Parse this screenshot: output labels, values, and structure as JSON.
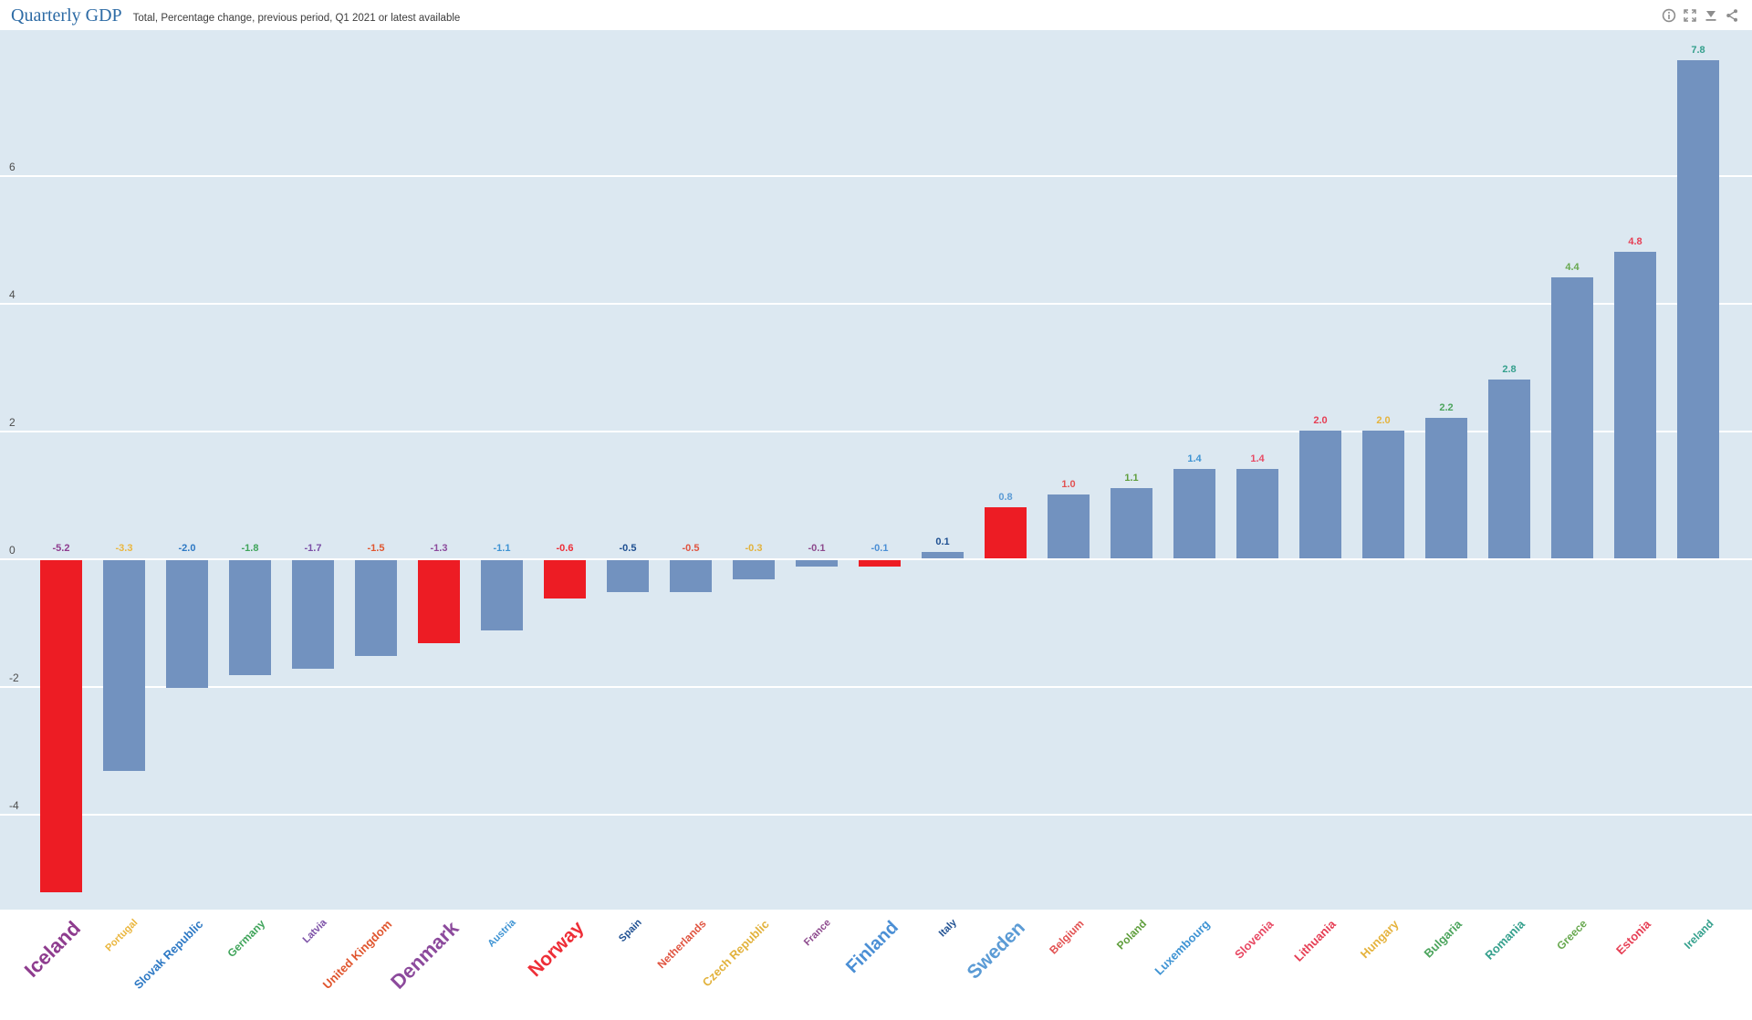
{
  "header": {
    "title": "Quarterly GDP",
    "subtitle": "Total, Percentage change, previous period, Q1 2021 or latest available",
    "icons": [
      "info",
      "fullscreen",
      "download",
      "share"
    ],
    "icon_color": "#8d8d8d",
    "title_color": "#2d6ba5"
  },
  "chart_data": {
    "type": "bar",
    "title": "Quarterly GDP",
    "subtitle": "Total, Percentage change, previous period, Q1 2021 or latest available",
    "xlabel": "",
    "ylabel": "",
    "ylim": [
      -5.5,
      8.3
    ],
    "yticks": [
      6,
      4,
      2,
      0,
      -2,
      -4
    ],
    "grid": "horizontal-white",
    "legend": "none",
    "plot_bg": "#dce8f1",
    "bar_color_default": "#7292bf",
    "bar_color_highlight": "#ed1c24",
    "series": [
      {
        "name": "Iceland",
        "value": -5.2,
        "label": "-5.2",
        "highlighted": true,
        "color": "#8e3c8e",
        "size": 22
      },
      {
        "name": "Portugal",
        "value": -3.3,
        "label": "-3.3",
        "highlighted": false,
        "color": "#eab63e",
        "size": 11
      },
      {
        "name": "Slovak Republic",
        "value": -2.0,
        "label": "-2.0",
        "highlighted": false,
        "color": "#2e79c4",
        "size": 13
      },
      {
        "name": "Germany",
        "value": -1.8,
        "label": "-1.8",
        "highlighted": false,
        "color": "#3fa45a",
        "size": 12
      },
      {
        "name": "Latvia",
        "value": -1.7,
        "label": "-1.7",
        "highlighted": false,
        "color": "#7b4fa6",
        "size": 11
      },
      {
        "name": "United Kingdom",
        "value": -1.5,
        "label": "-1.5",
        "highlighted": false,
        "color": "#e0562f",
        "size": 13
      },
      {
        "name": "Denmark",
        "value": -1.3,
        "label": "-1.3",
        "highlighted": true,
        "color": "#8c4a9c",
        "size": 22
      },
      {
        "name": "Austria",
        "value": -1.1,
        "label": "-1.1",
        "highlighted": false,
        "color": "#3e93d3",
        "size": 11
      },
      {
        "name": "Norway",
        "value": -0.6,
        "label": "-0.6",
        "highlighted": true,
        "color": "#ee2e37",
        "size": 21
      },
      {
        "name": "Spain",
        "value": -0.5,
        "label": "-0.5",
        "highlighted": false,
        "color": "#1e4f91",
        "size": 11
      },
      {
        "name": "Netherlands",
        "value": -0.5,
        "label": "-0.5",
        "highlighted": false,
        "color": "#e05440",
        "size": 12
      },
      {
        "name": "Czech Republic",
        "value": -0.3,
        "label": "-0.3",
        "highlighted": false,
        "color": "#e2b23c",
        "size": 13
      },
      {
        "name": "France",
        "value": -0.1,
        "label": "-0.1",
        "highlighted": false,
        "color": "#8d4a8d",
        "size": 11
      },
      {
        "name": "Finland",
        "value": -0.1,
        "label": "-0.1",
        "highlighted": true,
        "color": "#4b8fd5",
        "size": 20
      },
      {
        "name": "Italy",
        "value": 0.1,
        "label": "0.1",
        "highlighted": false,
        "color": "#1e4f91",
        "size": 11
      },
      {
        "name": "Sweden",
        "value": 0.8,
        "label": "0.8",
        "highlighted": true,
        "color": "#5b9bd5",
        "size": 21
      },
      {
        "name": "Belgium",
        "value": 1.0,
        "label": "1.0",
        "highlighted": false,
        "color": "#e25252",
        "size": 12
      },
      {
        "name": "Poland",
        "value": 1.1,
        "label": "1.1",
        "highlighted": false,
        "color": "#5f9e3c",
        "size": 12
      },
      {
        "name": "Luxembourg",
        "value": 1.4,
        "label": "1.4",
        "highlighted": false,
        "color": "#3e93d3",
        "size": 13
      },
      {
        "name": "Slovenia",
        "value": 1.4,
        "label": "1.4",
        "highlighted": false,
        "color": "#e84a64",
        "size": 13
      },
      {
        "name": "Lithuania",
        "value": 2.0,
        "label": "2.0",
        "highlighted": false,
        "color": "#e63e54",
        "size": 13
      },
      {
        "name": "Hungary",
        "value": 2.0,
        "label": "2.0",
        "highlighted": false,
        "color": "#e5b33d",
        "size": 13
      },
      {
        "name": "Bulgaria",
        "value": 2.2,
        "label": "2.2",
        "highlighted": false,
        "color": "#4ba45c",
        "size": 13
      },
      {
        "name": "Romania",
        "value": 2.8,
        "label": "2.8",
        "highlighted": false,
        "color": "#35a08d",
        "size": 13
      },
      {
        "name": "Greece",
        "value": 4.4,
        "label": "4.4",
        "highlighted": false,
        "color": "#67a84e",
        "size": 12
      },
      {
        "name": "Estonia",
        "value": 4.8,
        "label": "4.8",
        "highlighted": false,
        "color": "#e63e54",
        "size": 13
      },
      {
        "name": "Ireland",
        "value": 7.8,
        "label": "7.8",
        "highlighted": false,
        "color": "#35a08d",
        "size": 12
      }
    ]
  }
}
